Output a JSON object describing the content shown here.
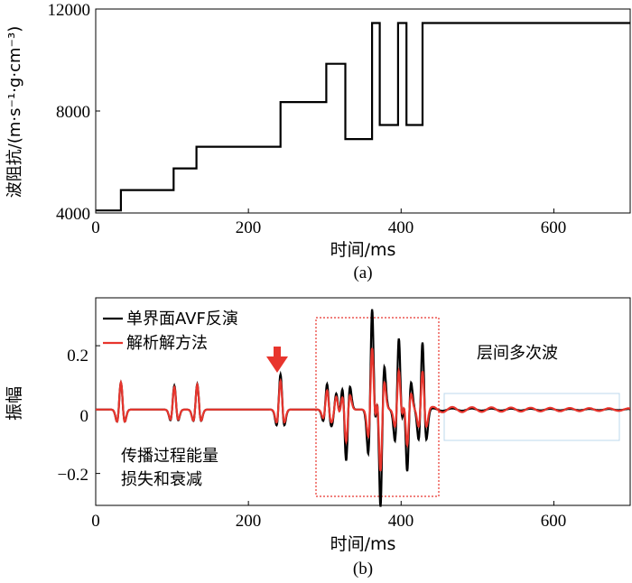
{
  "chart_data": [
    {
      "type": "line",
      "panel_label": "(a)",
      "xlabel": "时间/ms",
      "ylabel": "波阻抗/(m·s⁻¹·g·cm⁻³)",
      "xlim": [
        0,
        700
      ],
      "ylim": [
        4000,
        12000
      ],
      "xticks": [
        "0",
        "200",
        "400",
        "600"
      ],
      "yticks": [
        "4000",
        "8000",
        "12000"
      ],
      "grid": false,
      "series": [
        {
          "color": "#000000",
          "step": true,
          "x": [
            0,
            33,
            33,
            102,
            102,
            132,
            132,
            242,
            242,
            302,
            302,
            327,
            327,
            362,
            362,
            372,
            372,
            396,
            396,
            407,
            407,
            428,
            428,
            700
          ],
          "y": [
            4100,
            4100,
            4900,
            4900,
            5750,
            5750,
            6600,
            6600,
            8350,
            8350,
            9850,
            9850,
            6900,
            6900,
            11450,
            11450,
            7450,
            7450,
            11450,
            11450,
            7450,
            7450,
            11450,
            11450
          ]
        }
      ]
    },
    {
      "type": "line",
      "panel_label": "(b)",
      "xlabel": "时间/ms",
      "ylabel": "振幅",
      "xlim": [
        0,
        700
      ],
      "ylim": [
        -0.3,
        0.35
      ],
      "xticks": [
        "0",
        "200",
        "400",
        "600"
      ],
      "yticks": [
        "0.2",
        "0",
        "−0.2"
      ],
      "grid": false,
      "legend": {
        "position": "top-left"
      },
      "series": [
        {
          "name": "单界面AVF反演",
          "color": "#000000"
        },
        {
          "name": "解析解方法",
          "color": "#e8352d"
        }
      ],
      "wavelets": [
        {
          "t": 33,
          "black": 0.085,
          "red": 0.085
        },
        {
          "t": 103,
          "black": 0.075,
          "red": 0.07
        },
        {
          "t": 133,
          "black": 0.08,
          "red": 0.078
        },
        {
          "t": 242,
          "black": 0.11,
          "red": 0.09
        },
        {
          "t": 303,
          "black": 0.08,
          "red": 0.06
        },
        {
          "t": 315,
          "black": 0.05,
          "red": 0.04
        },
        {
          "t": 328,
          "black": -0.16,
          "red": -0.1
        },
        {
          "t": 362,
          "black": 0.31,
          "red": 0.19
        },
        {
          "t": 373,
          "black": -0.3,
          "red": -0.19
        },
        {
          "t": 397,
          "black": 0.22,
          "red": 0.12
        },
        {
          "t": 408,
          "black": -0.19,
          "red": -0.11
        },
        {
          "t": 428,
          "black": 0.21,
          "red": 0.12
        }
      ],
      "annotations": {
        "attenuation_text_line1": "传播过程能量",
        "attenuation_text_line2": "损失和衰减",
        "multiples_text": "层间多次波",
        "arrow_color": "#e8352d"
      }
    }
  ]
}
